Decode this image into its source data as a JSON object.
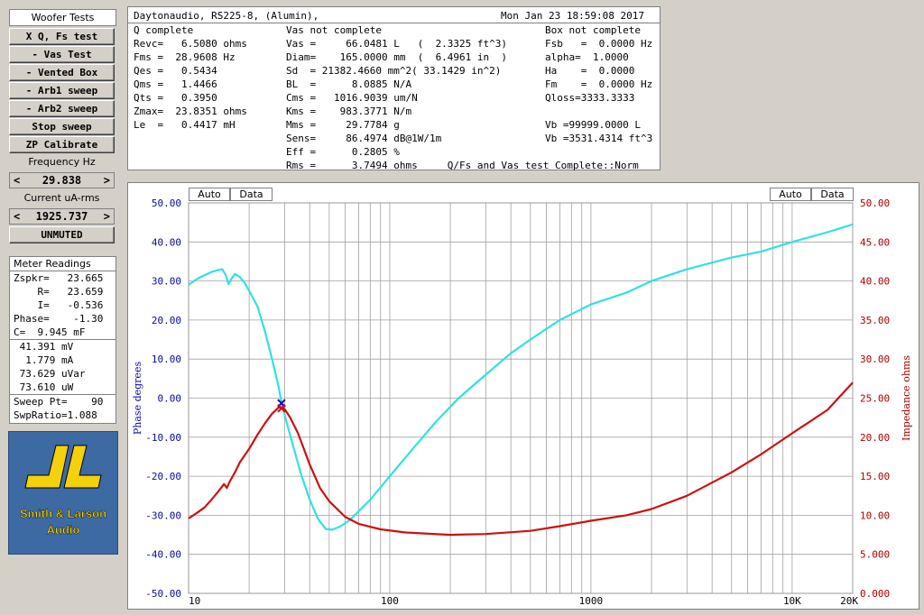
{
  "left_panel": {
    "title": "Woofer Tests",
    "buttons": [
      {
        "label": "X Q, Fs test"
      },
      {
        "label": "- Vas Test"
      },
      {
        "label": "- Vented Box"
      },
      {
        "label": "- Arb1 sweep"
      },
      {
        "label": "- Arb2 sweep"
      },
      {
        "label": "Stop sweep"
      },
      {
        "label": "ZP Calibrate"
      }
    ],
    "frequency_label": "Frequency Hz",
    "frequency_value": "29.838",
    "current_label": "Current uA-rms",
    "current_value": "1925.737",
    "mute_label": "UNMUTED",
    "left_arrow": "<",
    "right_arrow": ">"
  },
  "meter": {
    "title": "Meter Readings",
    "rows": [
      "Zspkr=   23.665",
      "    R=   23.659",
      "    I=   -0.536",
      "Phase=    -1.30",
      "C=  9.945 mF"
    ],
    "rows2": [
      " 41.391 mV",
      "  1.779 mA",
      " 73.629 uVar",
      " 73.610 uW"
    ],
    "rows3": [
      "Sweep Pt=    90",
      "SwpRatio=1.088"
    ]
  },
  "logo": {
    "line1": "Smith & Larson",
    "line2": "Audio"
  },
  "info": {
    "header_left": "Daytonaudio, RS225-8, (Alumin),",
    "header_right": "Mon Jan 23 18:59:08 2017",
    "col1": [
      "Q complete",
      "Revc=   6.5080 ohms",
      "Fms =  28.9608 Hz",
      "Qes =   0.5434",
      "Qms =   1.4466",
      "Qts =   0.3950",
      "Zmax=  23.8351 ohms",
      "Le  =   0.4417 mH"
    ],
    "col2": [
      "Vas not complete",
      "Vas =     66.0481 L   (  2.3325 ft^3)",
      "Diam=    165.0000 mm  (  6.4961 in  )",
      "Sd  = 21382.4660 mm^2( 33.1429 in^2)",
      "BL  =      8.0885 N/A",
      "Cms =   1016.9039 um/N",
      "Kms =    983.3771 N/m",
      "Mms =     29.7784 g",
      "Sens=     86.4974 dB@1W/1m",
      "Eff =      0.2805 %",
      "Rms =      3.7494 ohms     Q/Fs and Vas test Complete::Norm"
    ],
    "col3": [
      "Box not complete",
      "Fsb   =  0.0000 Hz",
      "alpha=  1.0000",
      "Ha    =  0.0000",
      "Fm    =  0.0000 Hz",
      "Qloss=3333.3333",
      "",
      "Vb =99999.0000 L",
      "Vb =3531.4314 ft^3"
    ]
  },
  "chart_toolbar": {
    "auto": "Auto",
    "data": "Data"
  },
  "chart_data": {
    "type": "line",
    "x_scale": "log",
    "xlim": [
      10,
      20000
    ],
    "x_ticks": [
      "10",
      "100",
      "1000",
      "10K",
      "20K"
    ],
    "ylabel_left": "Phase degrees",
    "ylabel_right": "Impedance ohms",
    "ylim_left": [
      -50,
      50
    ],
    "ylim_right": [
      0,
      50
    ],
    "left_ticks": [
      "50.00",
      "40.00",
      "30.00",
      "20.00",
      "10.00",
      "0.00",
      "-10.00",
      "-20.00",
      "-30.00",
      "-40.00",
      "-50.00"
    ],
    "right_ticks": [
      "50.00",
      "45.00",
      "40.00",
      "35.00",
      "30.00",
      "25.00",
      "20.00",
      "15.00",
      "10.00",
      "5.000",
      "0.000"
    ],
    "grid": true,
    "marker_freq": 28.96,
    "series": [
      {
        "axis": "left",
        "color": "#33e0e0",
        "points": [
          [
            10,
            29
          ],
          [
            11,
            30.5
          ],
          [
            12,
            31.5
          ],
          [
            13,
            32.3
          ],
          [
            14,
            32.8
          ],
          [
            14.7,
            33
          ],
          [
            15.3,
            31.5
          ],
          [
            15.8,
            29.2
          ],
          [
            16.3,
            30.5
          ],
          [
            17,
            31.8
          ],
          [
            18,
            31
          ],
          [
            19,
            29.5
          ],
          [
            20,
            27.5
          ],
          [
            22,
            23.5
          ],
          [
            24,
            17
          ],
          [
            26,
            10
          ],
          [
            28,
            3
          ],
          [
            29,
            -1.3
          ],
          [
            31,
            -7
          ],
          [
            33,
            -12
          ],
          [
            36,
            -19
          ],
          [
            40,
            -26
          ],
          [
            44,
            -31
          ],
          [
            48,
            -33.5
          ],
          [
            52,
            -33.7
          ],
          [
            57,
            -32.8
          ],
          [
            63,
            -31.3
          ],
          [
            70,
            -29
          ],
          [
            80,
            -26
          ],
          [
            100,
            -20
          ],
          [
            130,
            -13
          ],
          [
            170,
            -6
          ],
          [
            220,
            0
          ],
          [
            300,
            6
          ],
          [
            400,
            11.5
          ],
          [
            500,
            15
          ],
          [
            700,
            20
          ],
          [
            1000,
            24
          ],
          [
            1500,
            27
          ],
          [
            2000,
            30
          ],
          [
            3000,
            33
          ],
          [
            5000,
            36
          ],
          [
            7000,
            37.5
          ],
          [
            10000,
            40
          ],
          [
            15000,
            42.5
          ],
          [
            20000,
            44.5
          ]
        ]
      },
      {
        "axis": "right",
        "color": "#cc1111",
        "points": [
          [
            10,
            9.6
          ],
          [
            11,
            10.3
          ],
          [
            12,
            11
          ],
          [
            13,
            12
          ],
          [
            14,
            13
          ],
          [
            15,
            14
          ],
          [
            15.5,
            13.5
          ],
          [
            16,
            14.3
          ],
          [
            17,
            15.5
          ],
          [
            18,
            16.8
          ],
          [
            20,
            18.5
          ],
          [
            22,
            20.3
          ],
          [
            24,
            21.8
          ],
          [
            26,
            23
          ],
          [
            28,
            23.8
          ],
          [
            29,
            23.8
          ],
          [
            30,
            23.6
          ],
          [
            32,
            22.5
          ],
          [
            35,
            20.5
          ],
          [
            40,
            16.5
          ],
          [
            45,
            13.5
          ],
          [
            50,
            11.8
          ],
          [
            60,
            9.8
          ],
          [
            70,
            8.9
          ],
          [
            90,
            8.2
          ],
          [
            120,
            7.8
          ],
          [
            200,
            7.5
          ],
          [
            300,
            7.6
          ],
          [
            500,
            8
          ],
          [
            700,
            8.6
          ],
          [
            1000,
            9.3
          ],
          [
            1500,
            10
          ],
          [
            2000,
            10.8
          ],
          [
            3000,
            12.5
          ],
          [
            5000,
            15.5
          ],
          [
            7000,
            17.8
          ],
          [
            10000,
            20.5
          ],
          [
            15000,
            23.5
          ],
          [
            20000,
            27
          ]
        ]
      }
    ]
  }
}
